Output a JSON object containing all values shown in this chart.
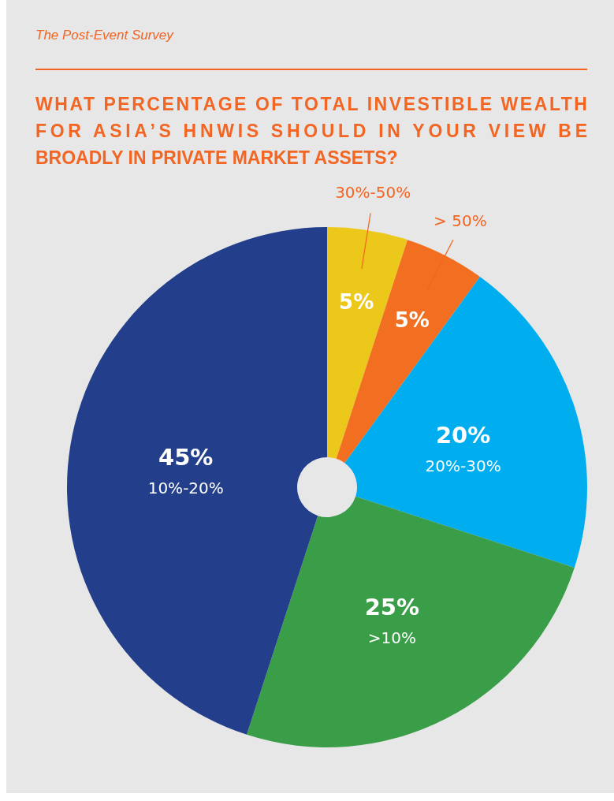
{
  "chart_data": {
    "type": "pie",
    "subtitle": "The Post-Event Survey",
    "title": "WHAT PERCENTAGE OF TOTAL INVESTIBLE WEALTH FOR ASIA’S HNWIS SHOULD IN YOUR VIEW BE BROADLY IN PRIVATE MARKET ASSETS?",
    "categories": [
      "30%-50%",
      "> 50%",
      "20%-30%",
      ">10%",
      "10%-20%"
    ],
    "values": [
      5,
      5,
      20,
      25,
      45
    ],
    "value_labels": [
      "5%",
      "5%",
      "20%",
      "25%",
      "45%"
    ],
    "colors": [
      "#ecc81a",
      "#f26f21",
      "#00adef",
      "#3a9d47",
      "#233f8b"
    ]
  }
}
